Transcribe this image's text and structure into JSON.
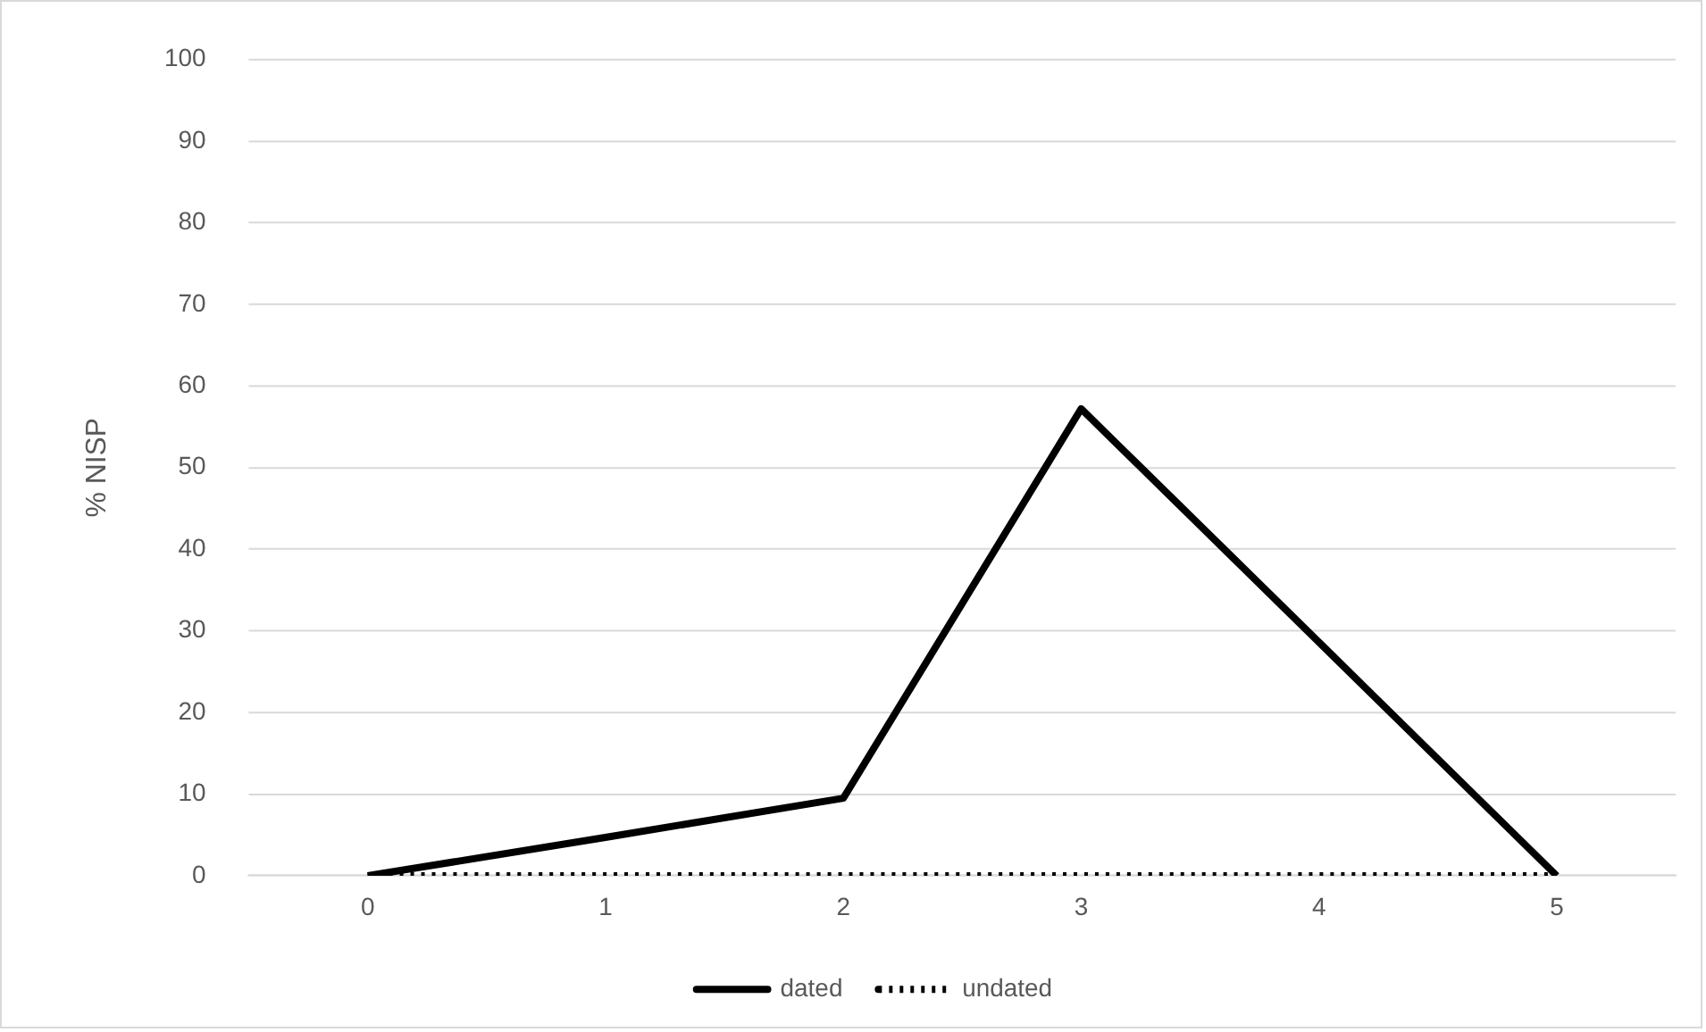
{
  "chart_data": {
    "type": "line",
    "ylabel": "% NISP",
    "categories": [
      "0",
      "1",
      "2",
      "3",
      "4",
      "5"
    ],
    "series": [
      {
        "name": "dated",
        "color": "#000000",
        "line_style": "solid",
        "values": [
          0,
          4.7,
          9.5,
          57.2,
          28.6,
          0
        ]
      },
      {
        "name": "undated",
        "color": "#000000",
        "line_style": "dotted",
        "values": [
          0,
          0,
          0,
          0,
          0,
          0
        ]
      }
    ],
    "ylim": [
      0,
      100
    ],
    "yticks": [
      0,
      10,
      20,
      30,
      40,
      50,
      60,
      70,
      80,
      90,
      100
    ],
    "grid": "y",
    "legend": "bottom",
    "marker": "none"
  }
}
